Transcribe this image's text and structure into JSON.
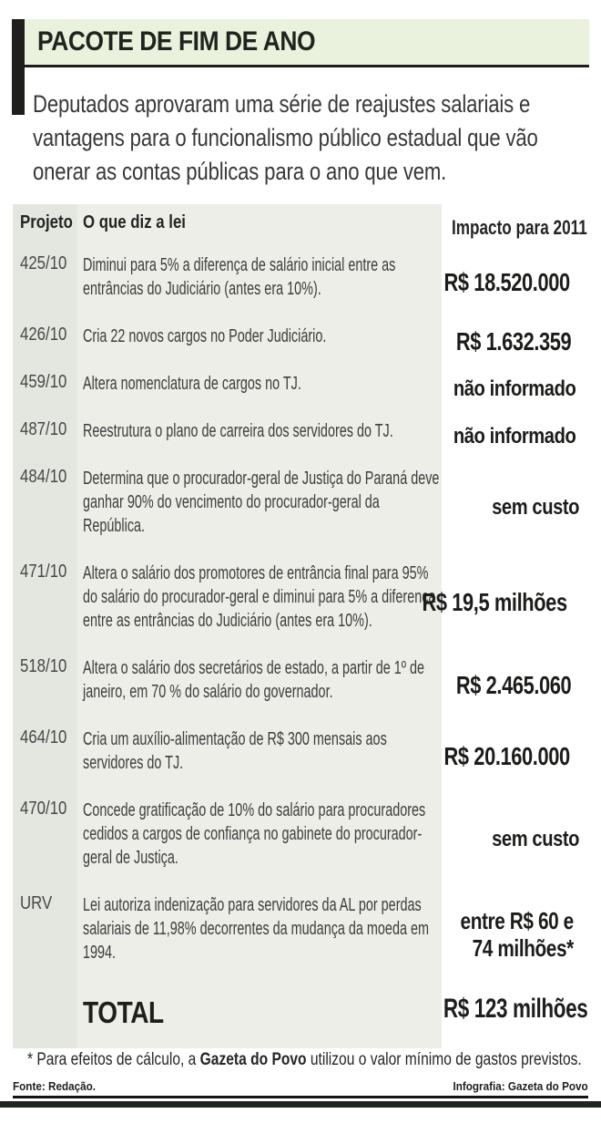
{
  "page": {
    "intro": "Deputados aprovaram uma série de reajustes salariais e vantagens para o funcionalismo público estadual que vão onerar as contas públicas para o ano que vem."
  },
  "chart_data": {
    "type": "table",
    "title": "PACOTE DE FIM DE ANO",
    "columns": [
      "Projeto",
      "O que diz a lei",
      "Impacto para 2011"
    ],
    "rows": [
      {
        "projeto": "425/10",
        "lei": "Diminui para 5% a diferença de salário inicial entre as entrâncias do Judiciário (antes era 10%).",
        "impacto": "R$ 18.520.000",
        "estilo": "large"
      },
      {
        "projeto": "426/10",
        "lei": "Cria 22 novos cargos no Poder Judiciário.",
        "impacto": "R$ 1.632.359",
        "estilo": "large"
      },
      {
        "projeto": "459/10",
        "lei": "Altera nomenclatura de cargos no TJ.",
        "impacto": "não informado",
        "estilo": "medium"
      },
      {
        "projeto": "487/10",
        "lei": "Reestrutura o plano de carreira dos servidores do TJ.",
        "impacto": "não informado",
        "estilo": "medium"
      },
      {
        "projeto": "484/10",
        "lei": "Determina que o procurador-geral de Justiça do Paraná deve ganhar 90% do vencimento do procurador-geral da República.",
        "impacto": "sem custo",
        "estilo": "medium"
      },
      {
        "projeto": "471/10",
        "lei": "Altera o salário dos promotores de entrância final para 95% do salário do procurador-geral e diminui para 5% a diferença entre as entrâncias do Judiciário (antes era 10%).",
        "impacto": "R$ 19,5 milhões",
        "estilo": "large"
      },
      {
        "projeto": "518/10",
        "lei": "Altera o salário dos secretários de estado, a partir de 1º de janeiro, em 70 % do salário do governador.",
        "impacto": "R$ 2.465.060",
        "estilo": "large"
      },
      {
        "projeto": "464/10",
        "lei": "Cria um auxílio-alimentação de R$ 300 mensais aos servidores do TJ.",
        "impacto": "R$ 20.160.000",
        "estilo": "large"
      },
      {
        "projeto": "470/10",
        "lei": "Concede gratificação de 10% do salário para procuradores cedidos a cargos de confiança no gabinete do procurador-geral de Justiça.",
        "impacto": "sem custo",
        "estilo": "medium"
      },
      {
        "projeto": "URV",
        "lei": "Lei autoriza indenização para servidores da AL por perdas salariais de 11,98% decorrentes da mudança da moeda em 1994.",
        "impacto": "entre R$ 60 e 74 milhões*",
        "impacto_linhas": [
          "entre R$ 60 e",
          "74 milhões*"
        ],
        "estilo": "split"
      }
    ],
    "total": {
      "label": "TOTAL",
      "value": "R$ 123 milhões"
    }
  },
  "footer": {
    "footnote_prefix": "* Para efeitos de cálculo, a ",
    "footnote_brand": "Gazeta do Povo",
    "footnote_suffix": " utilizou o valor mínimo de gastos previstos.",
    "source": "Fonte: Redação.",
    "credit": "Infografia: Gazeta do Povo"
  },
  "colors": {
    "title_band_bg": "#eaf1dc",
    "accent_black": "#1e1e1c",
    "col_projeto_bg": "#e4e7e0",
    "col_lei_bg": "#edeee8",
    "rule": "#242424",
    "bottom_bar": "#20241f"
  }
}
